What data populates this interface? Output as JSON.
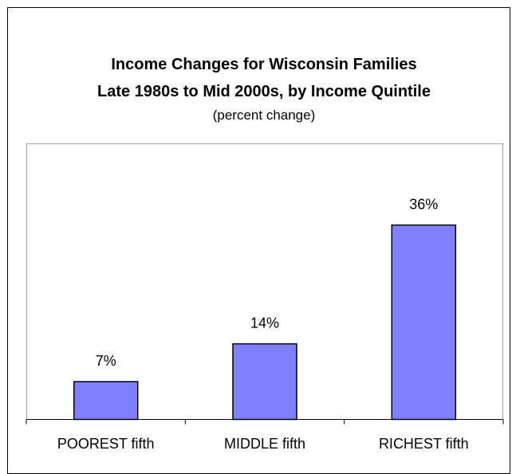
{
  "chart_data": {
    "type": "bar",
    "title_line1": "Income Changes for Wisconsin Families",
    "title_line2": "Late 1980s to Mid 2000s, by Income Quintile",
    "subtitle": "(percent change)",
    "categories": [
      "POOREST fifth",
      "MIDDLE fifth",
      "RICHEST fifth"
    ],
    "values": [
      7,
      14,
      36
    ],
    "data_labels": [
      "7%",
      "14%",
      "36%"
    ],
    "xlabel": "",
    "ylabel": "",
    "ylim": [
      0,
      45
    ],
    "grid": false,
    "legend": "none",
    "bar_color": "#8080ff",
    "bar_stroke": "#000000"
  }
}
